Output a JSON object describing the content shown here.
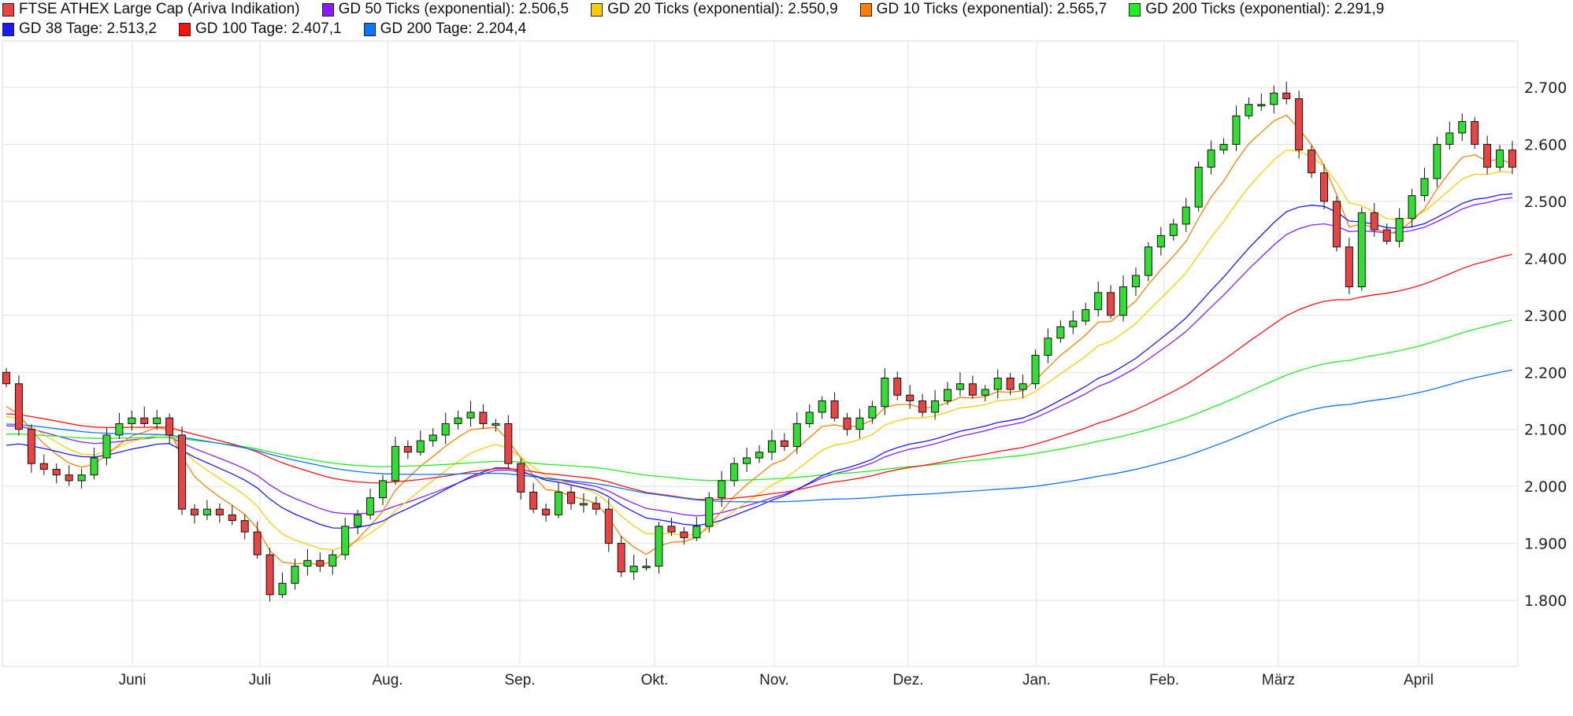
{
  "chart_data": {
    "type": "candlestick",
    "title": "",
    "legend": [
      {
        "name": "FTSE ATHEX Large Cap (Ariva Indikation)",
        "color": "#e84444"
      },
      {
        "name": "GD 50 Ticks (exponential): 2.506,5",
        "color": "#8a1cff"
      },
      {
        "name": "GD 20 Ticks (exponential): 2.550,9",
        "color": "#ffcc00"
      },
      {
        "name": "GD 10 Ticks (exponential): 2.565,7",
        "color": "#ff8000"
      },
      {
        "name": "GD 200 Ticks (exponential): 2.291,9",
        "color": "#22ee22"
      },
      {
        "name": "GD 38 Tage: 2.513,2",
        "color": "#1a1aff"
      },
      {
        "name": "GD 100 Tage: 2.407,1",
        "color": "#ff1010"
      },
      {
        "name": "GD 200 Tage: 2.204,4",
        "color": "#0a74ff"
      }
    ],
    "legend_placement": "top",
    "x_tick_labels": [
      "Juni",
      "Juli",
      "Aug.",
      "Sep.",
      "Okt.",
      "Nov.",
      "Dez.",
      "Jan.",
      "Feb.",
      "März",
      "April"
    ],
    "y_tick_labels": [
      "1.800",
      "1.900",
      "2.000",
      "2.100",
      "2.200",
      "2.300",
      "2.400",
      "2.500",
      "2.600",
      "2.700"
    ],
    "y_ticks": [
      1800,
      1900,
      2000,
      2100,
      2200,
      2300,
      2400,
      2500,
      2600,
      2700
    ],
    "ylim": [
      1700,
      2790
    ],
    "grid": true,
    "y_axis_side": "right",
    "colors": {
      "up": "#33dd33",
      "down": "#e84444"
    },
    "closes": [
      2180,
      2100,
      2040,
      2030,
      2020,
      2010,
      2020,
      2050,
      2090,
      2110,
      2120,
      2110,
      2120,
      2090,
      1960,
      1950,
      1960,
      1950,
      1940,
      1920,
      1880,
      1810,
      1830,
      1860,
      1870,
      1860,
      1880,
      1930,
      1950,
      1980,
      2010,
      2070,
      2060,
      2080,
      2090,
      2110,
      2120,
      2130,
      2110,
      2110,
      2040,
      1990,
      1960,
      1950,
      1990,
      1970,
      1970,
      1960,
      1900,
      1850,
      1860,
      1860,
      1930,
      1920,
      1910,
      1930,
      1980,
      2010,
      2040,
      2050,
      2060,
      2080,
      2070,
      2110,
      2130,
      2150,
      2120,
      2100,
      2120,
      2140,
      2190,
      2160,
      2150,
      2130,
      2150,
      2170,
      2180,
      2160,
      2170,
      2190,
      2170,
      2180,
      2230,
      2260,
      2280,
      2290,
      2310,
      2340,
      2300,
      2350,
      2370,
      2420,
      2440,
      2460,
      2490,
      2560,
      2590,
      2600,
      2650,
      2670,
      2670,
      2690,
      2680,
      2590,
      2550,
      2500,
      2420,
      2350,
      2480,
      2450,
      2430,
      2470,
      2510,
      2540,
      2600,
      2620,
      2640,
      2600,
      2560,
      2590,
      2560
    ],
    "moving_averages": [
      {
        "name": "GD 50 Ticks (exponential)",
        "period": 50,
        "start": 2100,
        "last": 2506.5,
        "color": "#8a1cff"
      },
      {
        "name": "GD 20 Ticks (exponential)",
        "period": 20,
        "start": 2110,
        "last": 2550.9,
        "color": "#ffcc00"
      },
      {
        "name": "GD 10 Ticks (exponential)",
        "period": 10,
        "start": 2120,
        "last": 2565.7,
        "color": "#ff8000"
      },
      {
        "name": "GD 200 Ticks (exponential)",
        "period": 200,
        "start": 2090,
        "last": 2291.9,
        "color": "#22ee22"
      },
      {
        "name": "GD 38 Tage",
        "period": 38,
        "start": 2060,
        "last": 2513.2,
        "color": "#1a1aff"
      },
      {
        "name": "GD 100 Tage",
        "period": 100,
        "start": 2125,
        "last": 2407.1,
        "color": "#ff1010"
      },
      {
        "name": "GD 200 Tage",
        "period": 200,
        "start": 2108,
        "last": 2204.4,
        "color": "#0a74ff"
      }
    ]
  }
}
